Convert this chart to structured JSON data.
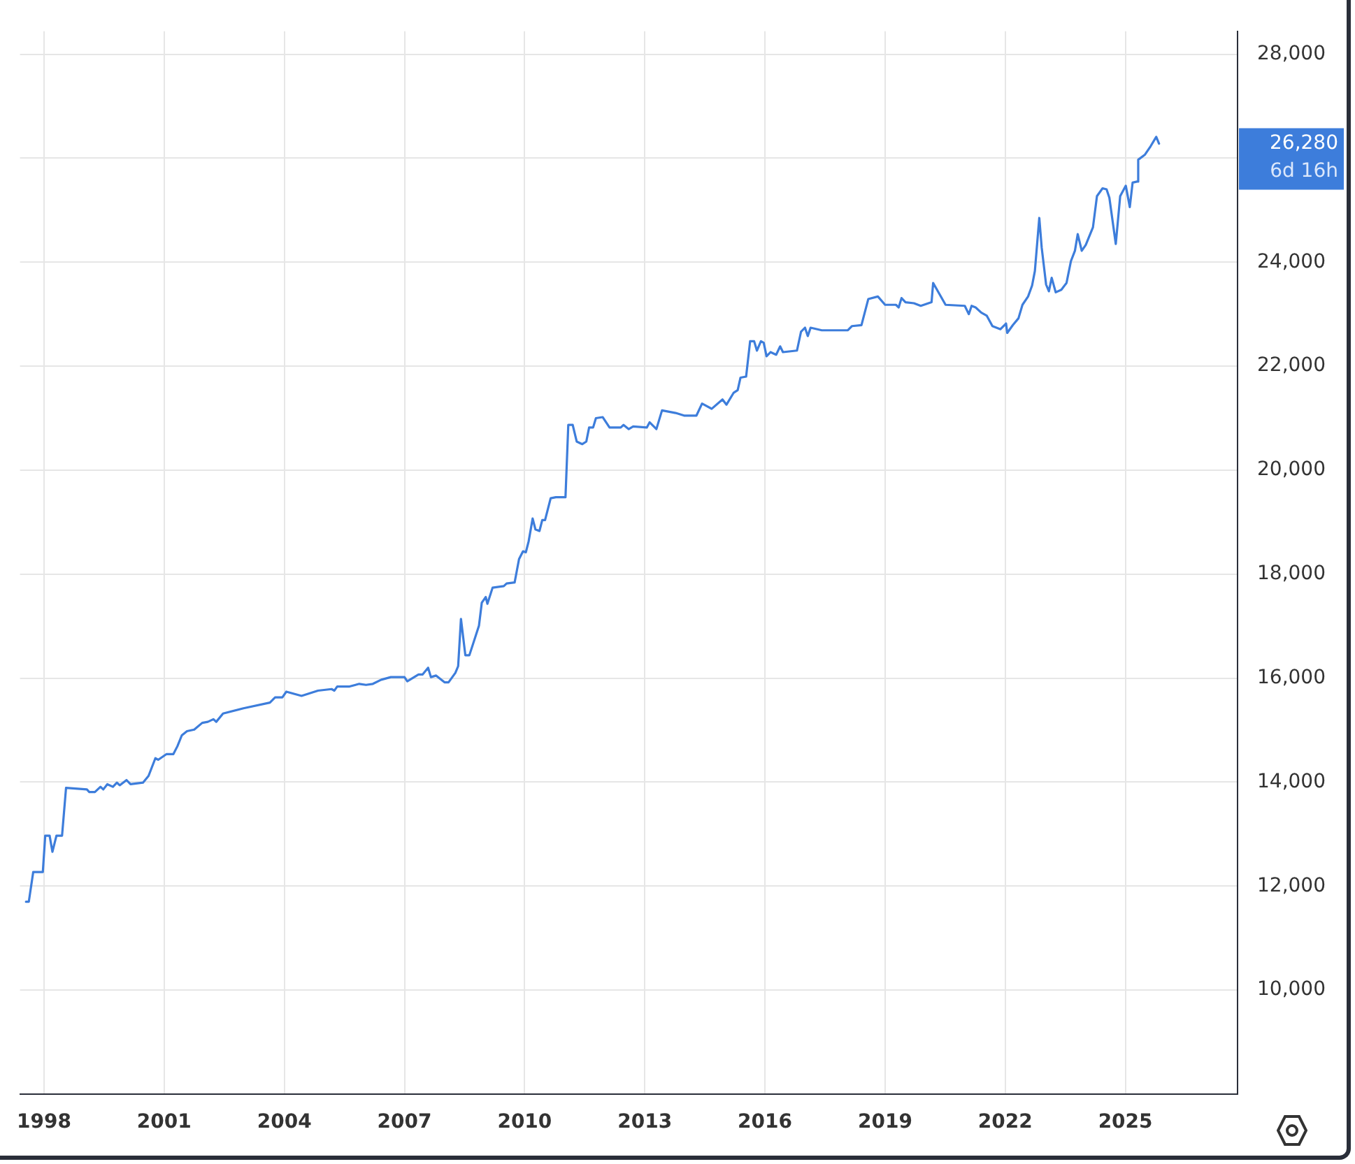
{
  "chart_data": {
    "type": "line",
    "x": [
      1997.55,
      1997.62,
      1997.73,
      1997.97,
      1998.03,
      1998.14,
      1998.21,
      1998.31,
      1998.45,
      1998.55,
      1999.07,
      1999.13,
      1999.27,
      1999.41,
      1999.48,
      1999.58,
      1999.72,
      1999.82,
      1999.89,
      2000.06,
      2000.16,
      2000.47,
      2000.61,
      2000.78,
      2000.85,
      2001.06,
      2001.23,
      2001.33,
      2001.44,
      2001.57,
      2001.75,
      2001.95,
      2002.09,
      2002.23,
      2002.3,
      2002.47,
      2002.98,
      2003.64,
      2003.77,
      2003.95,
      2004.05,
      2004.43,
      2004.84,
      2005.18,
      2005.25,
      2005.32,
      2005.63,
      2005.87,
      2006.04,
      2006.21,
      2006.42,
      2006.66,
      2007.0,
      2007.07,
      2007.35,
      2007.45,
      2007.59,
      2007.66,
      2007.79,
      2008.0,
      2008.1,
      2008.27,
      2008.34,
      2008.41,
      2008.52,
      2008.62,
      2008.86,
      2008.93,
      2009.03,
      2009.07,
      2009.2,
      2009.48,
      2009.55,
      2009.75,
      2009.86,
      2009.96,
      2010.03,
      2010.1,
      2010.2,
      2010.27,
      2010.37,
      2010.44,
      2010.51,
      2010.65,
      2010.78,
      2011.02,
      2011.09,
      2011.2,
      2011.3,
      2011.44,
      2011.54,
      2011.61,
      2011.71,
      2011.78,
      2011.95,
      2012.12,
      2012.4,
      2012.47,
      2012.6,
      2012.71,
      2013.05,
      2013.12,
      2013.29,
      2013.43,
      2013.77,
      2013.98,
      2014.15,
      2014.29,
      2014.43,
      2014.67,
      2014.94,
      2015.04,
      2015.22,
      2015.32,
      2015.39,
      2015.53,
      2015.63,
      2015.73,
      2015.8,
      2015.9,
      2015.97,
      2016.04,
      2016.14,
      2016.28,
      2016.38,
      2016.45,
      2016.8,
      2016.9,
      2017.0,
      2017.07,
      2017.14,
      2017.42,
      2017.83,
      2018.07,
      2018.17,
      2018.41,
      2018.58,
      2018.82,
      2019.0,
      2019.27,
      2019.34,
      2019.41,
      2019.51,
      2019.72,
      2019.89,
      2020.16,
      2020.2,
      2020.51,
      2020.99,
      2021.09,
      2021.16,
      2021.26,
      2021.4,
      2021.54,
      2021.68,
      2021.88,
      2022.02,
      2022.05,
      2022.19,
      2022.33,
      2022.43,
      2022.57,
      2022.67,
      2022.74,
      2022.85,
      2022.91,
      2023.02,
      2023.09,
      2023.16,
      2023.26,
      2023.4,
      2023.53,
      2023.64,
      2023.74,
      2023.81,
      2023.91,
      2024.01,
      2024.19,
      2024.29,
      2024.43,
      2024.53,
      2024.6,
      2024.76,
      2024.87,
      2025.01,
      2025.11,
      2025.18,
      2025.29,
      2025.32,
      2025.49,
      2025.63,
      2025.77,
      2025.84
    ],
    "series": [
      {
        "color": "#3d7ddb",
        "values": [
          11700,
          11700,
          12270,
          12270,
          12970,
          12970,
          12660,
          12970,
          12970,
          13890,
          13860,
          13810,
          13810,
          13910,
          13860,
          13960,
          13910,
          13990,
          13940,
          14040,
          13960,
          13990,
          14120,
          14460,
          14430,
          14540,
          14540,
          14690,
          14900,
          14980,
          15010,
          15140,
          15160,
          15210,
          15160,
          15320,
          15420,
          15530,
          15630,
          15630,
          15740,
          15660,
          15760,
          15790,
          15760,
          15840,
          15840,
          15890,
          15870,
          15890,
          15970,
          16020,
          16020,
          15940,
          16070,
          16070,
          16200,
          16020,
          16050,
          15920,
          15920,
          16100,
          16230,
          17140,
          16440,
          16440,
          17010,
          17450,
          17560,
          17430,
          17740,
          17770,
          17820,
          17840,
          18290,
          18440,
          18420,
          18630,
          19070,
          18860,
          18830,
          19040,
          19040,
          19460,
          19480,
          19480,
          20870,
          20870,
          20550,
          20500,
          20550,
          20820,
          20820,
          21000,
          21020,
          20820,
          20820,
          20870,
          20790,
          20840,
          20820,
          20920,
          20790,
          21150,
          21100,
          21050,
          21050,
          21050,
          21280,
          21180,
          21360,
          21260,
          21490,
          21540,
          21780,
          21800,
          22480,
          22480,
          22300,
          22480,
          22450,
          22190,
          22270,
          22220,
          22380,
          22270,
          22300,
          22660,
          22740,
          22580,
          22740,
          22690,
          22690,
          22690,
          22770,
          22790,
          23290,
          23340,
          23180,
          23180,
          23130,
          23310,
          23230,
          23210,
          23160,
          23230,
          23600,
          23180,
          23160,
          23000,
          23160,
          23130,
          23030,
          22970,
          22770,
          22710,
          22820,
          22640,
          22790,
          22920,
          23180,
          23340,
          23550,
          23830,
          24850,
          24280,
          23570,
          23440,
          23700,
          23420,
          23470,
          23600,
          24020,
          24220,
          24540,
          24220,
          24330,
          24670,
          25270,
          25420,
          25400,
          25240,
          24350,
          25270,
          25470,
          25060,
          25530,
          25550,
          25970,
          26070,
          26230,
          26410,
          26280
        ]
      }
    ],
    "xlim": [
      1997.4,
      2027.8
    ],
    "xticks": [
      1998,
      2001,
      2004,
      2007,
      2010,
      2013,
      2016,
      2019,
      2022,
      2025
    ],
    "ylim": [
      8000,
      28440
    ],
    "yticks": [
      {
        "value": 10000,
        "label": "10,000"
      },
      {
        "value": 12000,
        "label": "12,000"
      },
      {
        "value": 14000,
        "label": "14,000"
      },
      {
        "value": 16000,
        "label": "16,000"
      },
      {
        "value": 18000,
        "label": "18,000"
      },
      {
        "value": 20000,
        "label": "20,000"
      },
      {
        "value": 22000,
        "label": "22,000"
      },
      {
        "value": 24000,
        "label": "24,000"
      },
      {
        "value": 26000,
        "label": null
      },
      {
        "value": 28000,
        "label": "28,000"
      }
    ],
    "annotations": [
      "26,280",
      "6d 16h"
    ],
    "grid": true,
    "legend": false,
    "marker": "none",
    "line_style": "solid"
  }
}
